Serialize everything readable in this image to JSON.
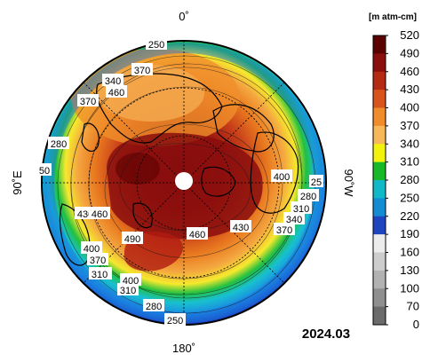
{
  "units": "[m atm-cm]",
  "date": "2024.03",
  "axis_labels": {
    "top": "0˚",
    "bottom": "180˚",
    "left": "90˚E",
    "right": "90˚W"
  },
  "colorbar": {
    "ticks": [
      "520",
      "490",
      "460",
      "430",
      "400",
      "370",
      "340",
      "310",
      "280",
      "250",
      "220",
      "190",
      "160",
      "130",
      "100",
      "70",
      "0"
    ],
    "colors": [
      "#5a0000",
      "#8b0e0e",
      "#b52a12",
      "#d9541a",
      "#f08c2c",
      "#f7b85a",
      "#f3f20d",
      "#18b928",
      "#11b9c8",
      "#148cd3",
      "#1f44c0",
      "#ececec",
      "#cdcdcd",
      "#b2b2b2",
      "#8f8f8f",
      "#6b6b6b",
      "#3d3d3d"
    ]
  },
  "contour_labels": [
    "250",
    "370",
    "340",
    "460",
    "370",
    "280",
    "50",
    "430",
    "460",
    "400",
    "370",
    "310",
    "310",
    "490",
    "460",
    "430",
    "400",
    "280",
    "310",
    "340",
    "370",
    "25",
    "250",
    "280",
    "400",
    "310"
  ]
}
